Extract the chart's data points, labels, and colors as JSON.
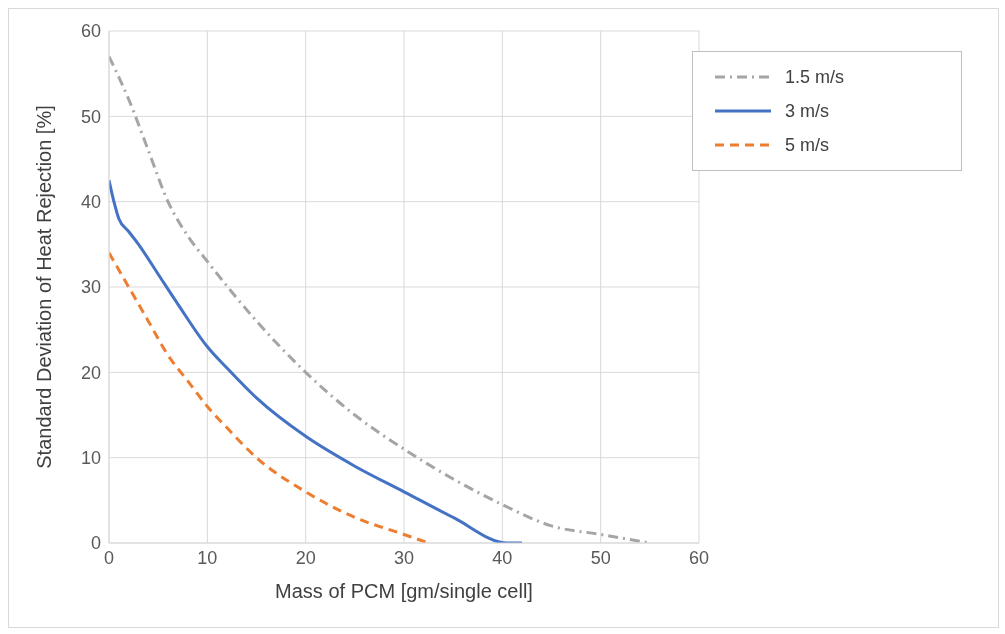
{
  "chart_data": {
    "type": "line",
    "xlabel": "Mass of PCM [gm/single cell]",
    "ylabel": "Standard Deviation of Heat Rejection [%]",
    "xlim": [
      0,
      60
    ],
    "xticks": [
      0,
      10,
      20,
      30,
      40,
      50,
      60
    ],
    "ylim": [
      0,
      60
    ],
    "yticks": [
      0,
      10,
      20,
      30,
      40,
      50,
      60
    ],
    "grid": true,
    "legend": "top right",
    "marker": "none",
    "series": [
      {
        "name": "1.5 m/s",
        "color": "#a5a5a5",
        "line_style": "dashdot",
        "x": [
          0,
          2,
          4,
          6,
          8,
          10,
          15,
          20,
          25,
          30,
          35,
          40,
          45,
          50,
          55
        ],
        "values": [
          57,
          52,
          46,
          40,
          36,
          33,
          26,
          20,
          15,
          11,
          7.5,
          4.5,
          2,
          1,
          0
        ]
      },
      {
        "name": "3 m/s",
        "color": "#4472c4",
        "line_style": "solid",
        "x": [
          0,
          0.5,
          1,
          2,
          3,
          5,
          7,
          10,
          12,
          15,
          20,
          25,
          30,
          35,
          40.5,
          42
        ],
        "values": [
          42.5,
          40,
          38,
          36.5,
          35,
          31.5,
          28,
          23,
          20.5,
          17,
          12.5,
          9,
          6,
          3,
          0,
          0
        ]
      },
      {
        "name": "5 m/s",
        "color": "#ed7d31",
        "line_style": "dashed",
        "x": [
          0,
          2,
          4,
          6,
          8,
          10,
          12,
          15,
          20,
          25,
          30,
          32.5
        ],
        "values": [
          34,
          30,
          26,
          22,
          19,
          16,
          13.5,
          10,
          6,
          3,
          1,
          0
        ]
      }
    ]
  }
}
